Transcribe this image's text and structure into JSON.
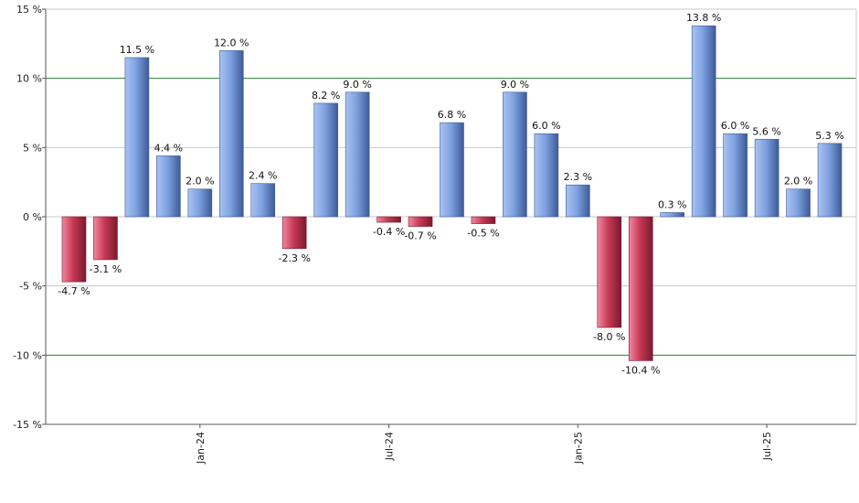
{
  "chart_data": {
    "type": "bar",
    "title": "",
    "xlabel": "",
    "ylabel": "",
    "ylim": [
      -15,
      15
    ],
    "y_ticks": [
      15,
      10,
      5,
      0,
      -5,
      -10,
      -15
    ],
    "y_tick_labels": [
      "15 %",
      "10 %",
      "5 %",
      "0 %",
      "-5 %",
      "-10 %",
      "-15 %"
    ],
    "grid": true,
    "highlight_lines": [
      10,
      -10
    ],
    "x_tick_labels": [
      "Jan-24",
      "Jul-24",
      "Jan-25",
      "Jul-25"
    ],
    "x_tick_bar_positions": [
      4,
      10,
      16,
      22
    ],
    "values": [
      -4.7,
      -3.1,
      11.5,
      4.4,
      2.0,
      12.0,
      2.4,
      -2.3,
      8.2,
      9.0,
      -0.4,
      -0.7,
      6.8,
      -0.5,
      9.0,
      6.0,
      2.3,
      -8.0,
      -10.4,
      0.3,
      13.8,
      6.0,
      5.6,
      2.0,
      5.3
    ],
    "value_labels": [
      "-4.7 %",
      "-3.1 %",
      "11.5 %",
      "4.4 %",
      "2.0 %",
      "12.0 %",
      "2.4 %",
      "-2.3 %",
      "8.2 %",
      "9.0 %",
      "-0.4 %",
      "-0.7 %",
      "6.8 %",
      "-0.5 %",
      "9.0 %",
      "6.0 %",
      "2.3 %",
      "-8.0 %",
      "-10.4 %",
      "0.3 %",
      "13.8 %",
      "6.0 %",
      "5.6 %",
      "2.0 %",
      "5.3 %"
    ],
    "colors": {
      "positive": "#7fa2e0",
      "negative": "#c83a55",
      "grid": "#c8c8c8",
      "highlight": "#2e7d32",
      "axis": "#555555"
    }
  }
}
